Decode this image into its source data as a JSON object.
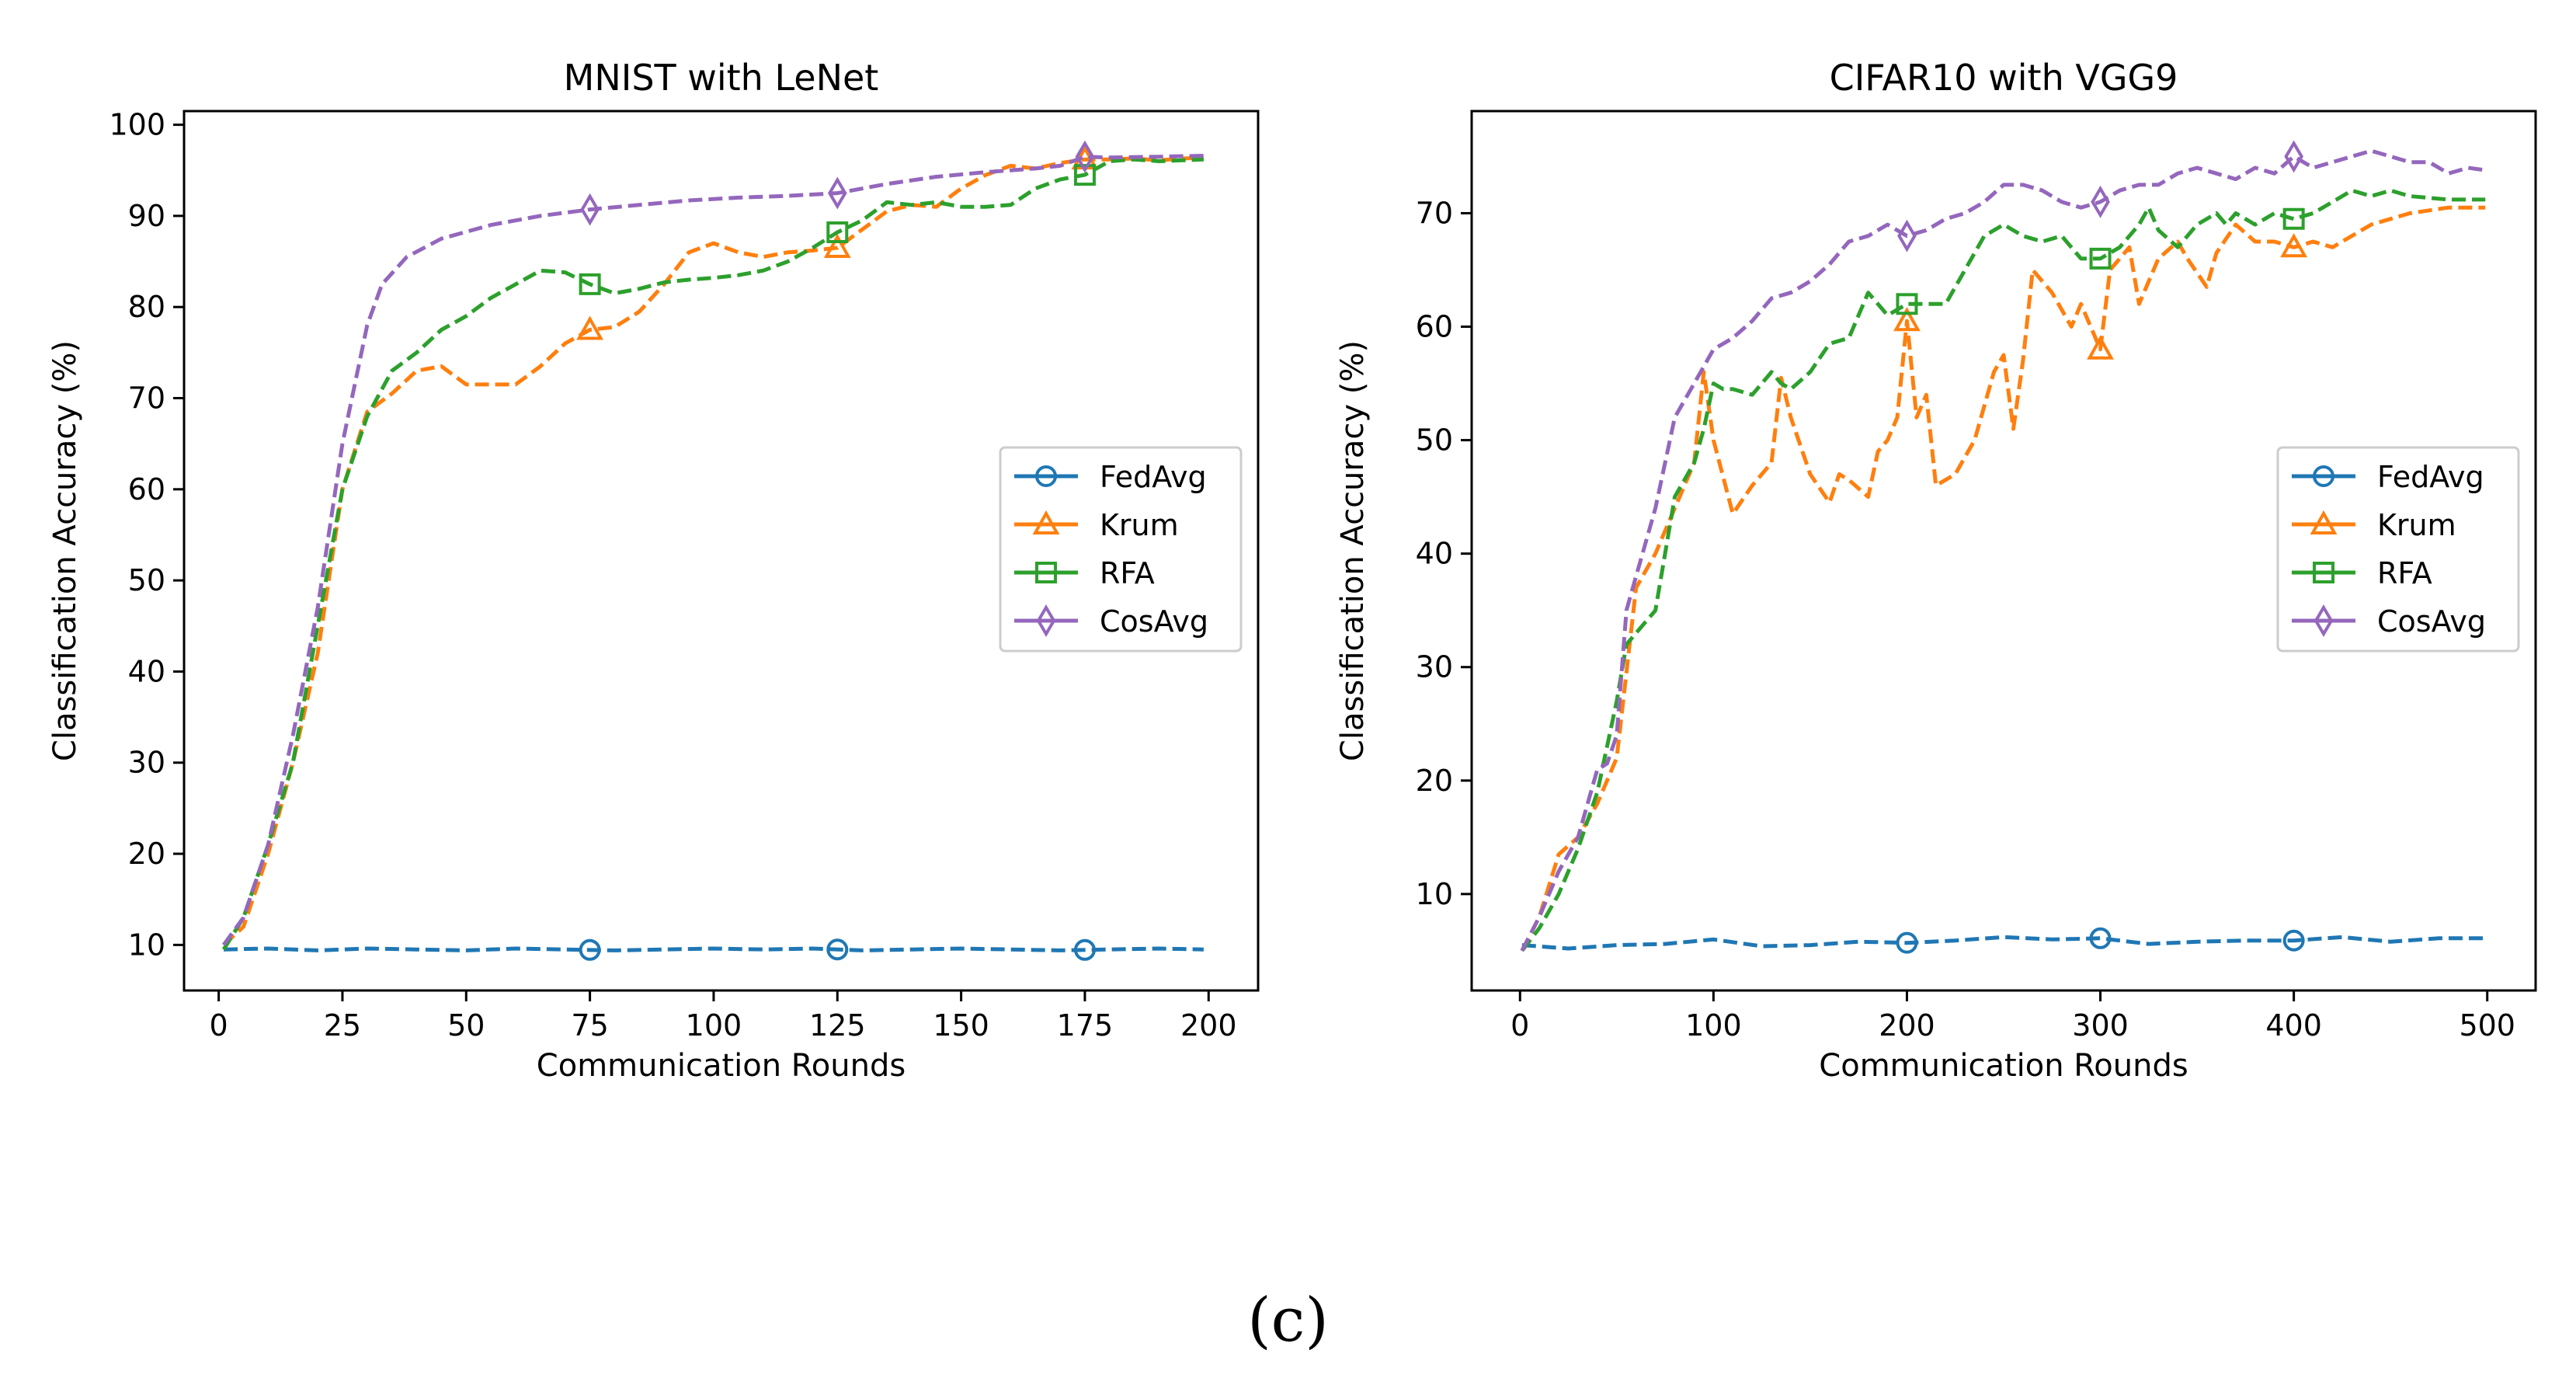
{
  "caption": "(c)",
  "chart_data": [
    {
      "type": "line",
      "title": "MNIST with LeNet",
      "xlabel": "Communication Rounds",
      "ylabel": "Classification Accuracy (%)",
      "xlim": [
        -7,
        210
      ],
      "ylim": [
        5,
        101.5
      ],
      "xticks": [
        0,
        25,
        50,
        75,
        100,
        125,
        150,
        175,
        200
      ],
      "yticks": [
        10,
        20,
        30,
        40,
        50,
        60,
        70,
        80,
        90,
        100
      ],
      "legend": "center-right",
      "series": [
        {
          "name": "FedAvg",
          "color": "#1f77b4",
          "marker": "circle",
          "marker_x": [
            75,
            125,
            175
          ],
          "x": [
            1,
            10,
            20,
            30,
            40,
            50,
            60,
            70,
            80,
            90,
            100,
            110,
            120,
            130,
            140,
            150,
            160,
            170,
            180,
            190,
            199
          ],
          "y": [
            9.5,
            9.6,
            9.4,
            9.6,
            9.5,
            9.4,
            9.6,
            9.5,
            9.4,
            9.5,
            9.6,
            9.5,
            9.6,
            9.4,
            9.5,
            9.6,
            9.5,
            9.4,
            9.5,
            9.6,
            9.5
          ]
        },
        {
          "name": "Krum",
          "color": "#ff7f0e",
          "marker": "triangle",
          "marker_x": [
            75,
            125,
            175
          ],
          "x": [
            1,
            5,
            10,
            15,
            20,
            25,
            30,
            35,
            40,
            45,
            50,
            55,
            60,
            65,
            70,
            75,
            80,
            85,
            90,
            95,
            100,
            105,
            110,
            115,
            120,
            125,
            130,
            135,
            140,
            145,
            150,
            155,
            160,
            165,
            170,
            175,
            180,
            185,
            190,
            195,
            199
          ],
          "y": [
            10,
            12,
            20,
            30,
            42,
            60,
            68.5,
            70.5,
            73,
            73.5,
            71.5,
            71.5,
            71.5,
            73.5,
            76,
            77.5,
            77.8,
            79.5,
            82.5,
            86,
            87,
            86,
            85.5,
            86,
            86.2,
            86.5,
            88.5,
            90.5,
            91.2,
            91,
            93,
            94.5,
            95.5,
            95.2,
            95.8,
            96.2,
            96.2,
            96.3,
            96.1,
            96.3,
            96.4
          ]
        },
        {
          "name": "RFA",
          "color": "#2ca02c",
          "marker": "square",
          "marker_x": [
            75,
            125,
            175
          ],
          "x": [
            1,
            5,
            10,
            15,
            20,
            25,
            30,
            35,
            40,
            45,
            50,
            55,
            60,
            65,
            70,
            75,
            80,
            85,
            90,
            95,
            100,
            105,
            110,
            115,
            120,
            125,
            130,
            135,
            140,
            145,
            150,
            155,
            160,
            165,
            170,
            175,
            180,
            185,
            190,
            195,
            199
          ],
          "y": [
            9.5,
            13,
            21,
            30,
            45,
            60,
            68,
            73,
            75,
            77.5,
            79,
            81,
            82.5,
            84,
            83.8,
            82.5,
            81.5,
            82,
            82.7,
            83,
            83.2,
            83.5,
            84,
            85,
            86.5,
            88.2,
            89.5,
            91.5,
            91.2,
            91.5,
            91,
            91,
            91.2,
            93,
            94,
            94.5,
            96,
            96.2,
            96,
            96.1,
            96.2
          ]
        },
        {
          "name": "CosAvg",
          "color": "#9467bd",
          "marker": "diamond",
          "marker_x": [
            75,
            125,
            175
          ],
          "x": [
            1,
            5,
            10,
            15,
            20,
            25,
            30,
            33,
            38,
            45,
            55,
            65,
            75,
            85,
            95,
            105,
            115,
            125,
            135,
            145,
            155,
            165,
            170,
            175,
            180,
            190,
            199
          ],
          "y": [
            10,
            13,
            21,
            33,
            47,
            65,
            78,
            82.5,
            85.5,
            87.5,
            89,
            90,
            90.7,
            91.2,
            91.7,
            92,
            92.2,
            92.5,
            93.5,
            94.3,
            94.8,
            95.2,
            95.5,
            96.5,
            96.4,
            96.5,
            96.6
          ]
        }
      ]
    },
    {
      "type": "line",
      "title": "CIFAR10 with VGG9",
      "xlabel": "Communication Rounds",
      "ylabel": "Classification Accuracy (%)",
      "xlim": [
        -25,
        525
      ],
      "ylim": [
        1.5,
        79
      ],
      "xticks": [
        0,
        100,
        200,
        300,
        400,
        500
      ],
      "yticks": [
        10,
        20,
        30,
        40,
        50,
        60,
        70
      ],
      "legend": "center-right",
      "series": [
        {
          "name": "FedAvg",
          "color": "#1f77b4",
          "marker": "circle",
          "marker_x": [
            200,
            300,
            400
          ],
          "x": [
            1,
            25,
            50,
            75,
            100,
            125,
            150,
            175,
            200,
            225,
            250,
            275,
            300,
            325,
            350,
            375,
            400,
            425,
            450,
            475,
            499
          ],
          "y": [
            5.5,
            5.2,
            5.5,
            5.6,
            6,
            5.4,
            5.5,
            5.8,
            5.7,
            5.9,
            6.2,
            6,
            6.1,
            5.6,
            5.8,
            5.9,
            5.9,
            6.2,
            5.8,
            6.1,
            6.1
          ]
        },
        {
          "name": "Krum",
          "color": "#ff7f0e",
          "marker": "triangle",
          "marker_x": [
            200,
            300,
            400
          ],
          "x": [
            1,
            10,
            20,
            30,
            40,
            50,
            60,
            70,
            80,
            90,
            95,
            100,
            110,
            120,
            130,
            135,
            140,
            150,
            160,
            165,
            170,
            180,
            185,
            190,
            195,
            200,
            205,
            210,
            215,
            225,
            235,
            245,
            250,
            255,
            260,
            265,
            275,
            285,
            290,
            300,
            305,
            315,
            320,
            330,
            340,
            345,
            355,
            360,
            370,
            380,
            390,
            400,
            410,
            420,
            430,
            440,
            450,
            460,
            480,
            499
          ],
          "y": [
            5,
            8,
            13.5,
            15,
            18,
            22,
            37,
            40,
            44,
            48,
            56,
            50,
            43.5,
            46,
            48,
            55.5,
            52,
            47,
            44.5,
            47,
            46.5,
            45,
            49,
            50,
            52,
            60.5,
            52,
            54,
            46,
            47,
            50,
            56,
            57.5,
            51,
            57,
            65,
            63,
            60,
            62,
            58,
            65,
            67,
            62,
            66,
            67.5,
            66,
            63.5,
            66.5,
            69,
            67.5,
            67.5,
            67,
            67.5,
            67,
            68,
            69,
            69.5,
            70,
            70.5,
            70.5
          ]
        },
        {
          "name": "RFA",
          "color": "#2ca02c",
          "marker": "square",
          "marker_x": [
            200,
            300,
            400
          ],
          "x": [
            1,
            10,
            20,
            30,
            40,
            50,
            55,
            60,
            70,
            80,
            90,
            95,
            100,
            105,
            110,
            120,
            130,
            135,
            140,
            150,
            160,
            170,
            180,
            185,
            190,
            200,
            210,
            220,
            230,
            240,
            250,
            260,
            270,
            280,
            290,
            300,
            310,
            320,
            325,
            330,
            340,
            350,
            360,
            365,
            370,
            380,
            390,
            400,
            410,
            420,
            430,
            440,
            450,
            460,
            480,
            499
          ],
          "y": [
            5,
            7,
            10,
            14,
            19,
            27,
            32,
            33,
            35,
            45,
            48,
            51,
            55,
            54.5,
            54.5,
            54,
            56,
            55,
            54.5,
            56,
            58.5,
            59,
            63,
            62,
            61,
            62,
            62,
            62,
            65,
            68,
            69,
            68,
            67.5,
            68,
            66,
            66,
            67,
            69,
            70.5,
            68.5,
            67,
            69,
            70,
            69,
            70,
            69,
            70,
            69.5,
            70,
            71,
            72,
            71.5,
            72,
            71.5,
            71.2,
            71.2
          ]
        },
        {
          "name": "CosAvg",
          "color": "#9467bd",
          "marker": "diamond",
          "marker_x": [
            200,
            300,
            400
          ],
          "x": [
            1,
            10,
            20,
            30,
            40,
            45,
            50,
            55,
            60,
            70,
            80,
            90,
            100,
            110,
            120,
            130,
            140,
            150,
            160,
            170,
            180,
            190,
            200,
            210,
            220,
            230,
            240,
            250,
            260,
            270,
            280,
            290,
            300,
            310,
            320,
            330,
            340,
            350,
            360,
            370,
            380,
            390,
            400,
            410,
            420,
            430,
            440,
            450,
            460,
            470,
            480,
            490,
            499
          ],
          "y": [
            5,
            8,
            12,
            15,
            21,
            21.5,
            24,
            35,
            38,
            44,
            52,
            55,
            58,
            59,
            60.5,
            62.5,
            63,
            64,
            65.5,
            67.5,
            68,
            69,
            68,
            68.5,
            69.5,
            70,
            71,
            72.5,
            72.5,
            72,
            71,
            70.5,
            71,
            72,
            72.5,
            72.5,
            73.5,
            74,
            73.5,
            73,
            74,
            73.5,
            75,
            74,
            74.5,
            75,
            75.5,
            75,
            74.5,
            74.5,
            73.5,
            74,
            73.8
          ]
        }
      ]
    }
  ]
}
